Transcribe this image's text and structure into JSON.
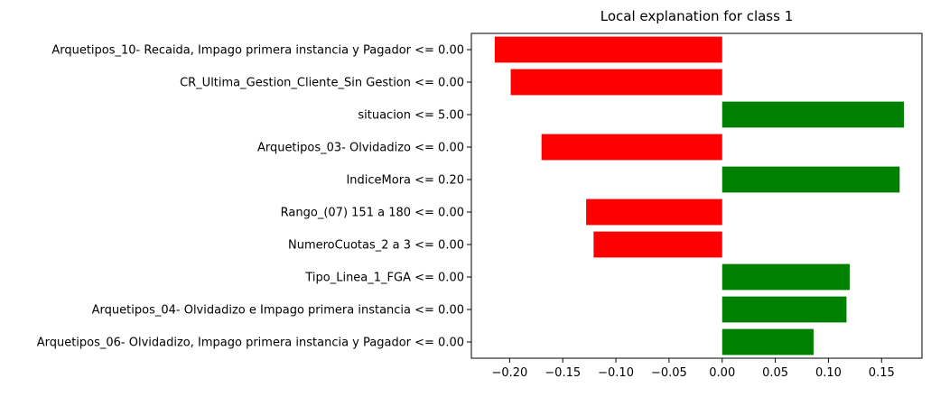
{
  "chart_data": {
    "type": "bar",
    "orientation": "horizontal",
    "title": "Local explanation for class 1",
    "xlabel": "",
    "ylabel": "",
    "xlim": [
      -0.236,
      0.188
    ],
    "xticks": [
      -0.2,
      -0.15,
      -0.1,
      -0.05,
      0.0,
      0.05,
      0.1,
      0.15
    ],
    "xtick_labels": [
      "−0.20",
      "−0.15",
      "−0.10",
      "−0.05",
      "0.00",
      "0.05",
      "0.10",
      "0.15"
    ],
    "grid": false,
    "colors": {
      "positive": "#008000",
      "negative": "#ff0000"
    },
    "categories": [
      "Arquetipos_10- Recaida, Impago primera instancia y Pagador <= 0.00",
      "CR_Ultima_Gestion_Cliente_Sin Gestion <= 0.00",
      "situacion <= 5.00",
      "Arquetipos_03- Olvidadizo <= 0.00",
      "IndiceMora <= 0.20",
      "Rango_(07) 151 a 180 <= 0.00",
      "NumeroCuotas_2 a 3 <= 0.00",
      "Tipo_Linea_1_FGA <= 0.00",
      "Arquetipos_04- Olvidadizo e Impago primera instancia <= 0.00",
      "Arquetipos_06- Olvidadizo, Impago primera instancia y Pagador <= 0.00"
    ],
    "values": [
      -0.214,
      -0.199,
      0.171,
      -0.17,
      0.167,
      -0.128,
      -0.121,
      0.12,
      0.117,
      0.086
    ]
  }
}
